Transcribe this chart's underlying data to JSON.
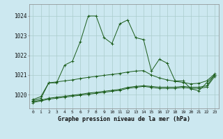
{
  "title": "Graphe pression niveau de la mer (hPa)",
  "background_color": "#cce8f0",
  "grid_color": "#aacccc",
  "line_color": "#1a5c1a",
  "xlim": [
    -0.5,
    23.5
  ],
  "ylim": [
    1019.3,
    1024.6
  ],
  "yticks": [
    1020,
    1021,
    1022,
    1023,
    1024
  ],
  "xtick_labels": [
    "0",
    "1",
    "2",
    "3",
    "4",
    "5",
    "6",
    "7",
    "8",
    "9",
    "10",
    "11",
    "12",
    "13",
    "14",
    "15",
    "16",
    "17",
    "18",
    "19",
    "20",
    "21",
    "22",
    "23"
  ],
  "series1": [
    1019.7,
    1019.8,
    1020.6,
    1020.6,
    1021.5,
    1021.7,
    1022.7,
    1024.0,
    1024.0,
    1022.9,
    1022.6,
    1023.6,
    1023.8,
    1022.9,
    1022.8,
    1021.2,
    1021.8,
    1021.6,
    1020.7,
    1020.7,
    1020.3,
    1020.2,
    1020.6,
    1021.0
  ],
  "series2": [
    1019.75,
    1019.9,
    1020.6,
    1020.65,
    1020.7,
    1020.75,
    1020.82,
    1020.88,
    1020.93,
    1020.98,
    1021.03,
    1021.08,
    1021.15,
    1021.2,
    1021.22,
    1021.0,
    1020.85,
    1020.75,
    1020.68,
    1020.62,
    1020.55,
    1020.58,
    1020.7,
    1021.05
  ],
  "series3": [
    1019.65,
    1019.72,
    1019.82,
    1019.87,
    1019.92,
    1019.97,
    1020.02,
    1020.08,
    1020.12,
    1020.17,
    1020.22,
    1020.27,
    1020.37,
    1020.42,
    1020.45,
    1020.42,
    1020.38,
    1020.38,
    1020.38,
    1020.42,
    1020.38,
    1020.38,
    1020.45,
    1021.0
  ],
  "series4": [
    1019.6,
    1019.68,
    1019.77,
    1019.82,
    1019.87,
    1019.92,
    1019.97,
    1020.02,
    1020.07,
    1020.12,
    1020.17,
    1020.22,
    1020.32,
    1020.37,
    1020.42,
    1020.37,
    1020.32,
    1020.32,
    1020.32,
    1020.37,
    1020.32,
    1020.32,
    1020.38,
    1020.92
  ]
}
